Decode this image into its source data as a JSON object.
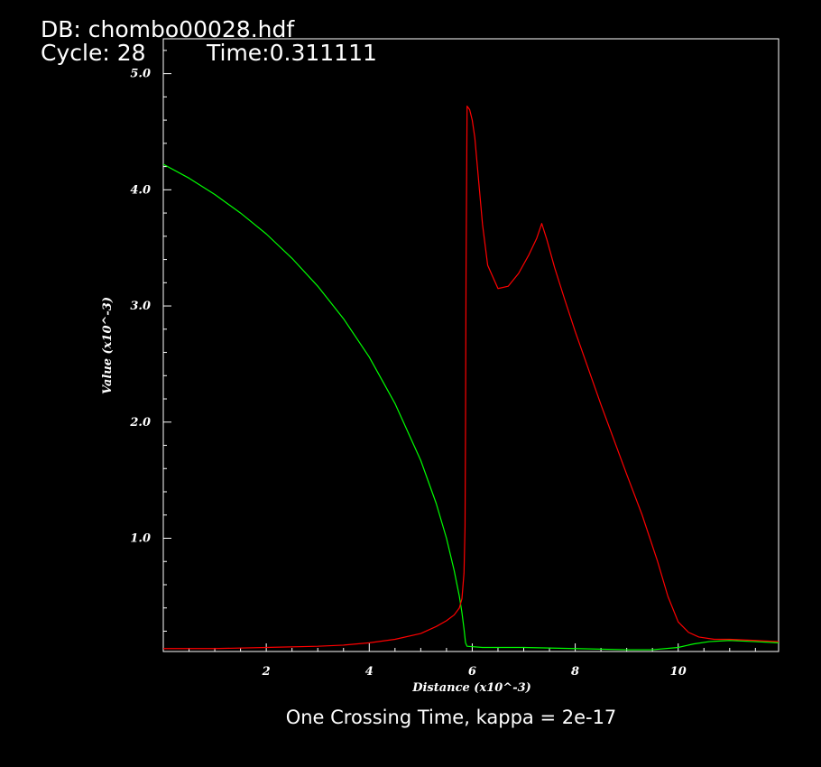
{
  "header": {
    "db_line": "DB: chombo00028.hdf",
    "cycle_line": "Cycle: 28",
    "time_line": "Time:0.311111"
  },
  "colors": {
    "background": "#000000",
    "axes": "#ffffff",
    "series_green": "#00ff00",
    "series_red": "#ff0000"
  },
  "chart_data": {
    "type": "line",
    "title": "One Crossing Time, kappa = 2e-17",
    "xlabel": "Distance (x10^-3)",
    "ylabel": "Value (x10^-3)",
    "xlim": [
      0,
      11.95
    ],
    "ylim": [
      0.025,
      5.3
    ],
    "grid": false,
    "legend": "none",
    "x_ticks": [
      {
        "value": 2,
        "label": "2"
      },
      {
        "value": 4,
        "label": "4"
      },
      {
        "value": 6,
        "label": "6"
      },
      {
        "value": 8,
        "label": "8"
      },
      {
        "value": 10,
        "label": "10"
      }
    ],
    "y_ticks": [
      {
        "value": 1,
        "label": "1.0"
      },
      {
        "value": 2,
        "label": "2.0"
      },
      {
        "value": 3,
        "label": "3.0"
      },
      {
        "value": 4,
        "label": "4.0"
      },
      {
        "value": 5,
        "label": "5.0"
      }
    ],
    "series": [
      {
        "color": "#00ff00",
        "x": [
          0,
          0.5,
          1,
          1.5,
          2,
          2.5,
          3,
          3.5,
          4,
          4.5,
          5,
          5.3,
          5.5,
          5.65,
          5.75,
          5.8,
          5.84,
          5.87,
          5.9,
          6.2,
          7,
          8,
          9,
          9.5,
          10,
          10.3,
          10.6,
          11,
          11.5,
          11.95
        ],
        "y": [
          4.22,
          4.1,
          3.96,
          3.8,
          3.62,
          3.41,
          3.17,
          2.89,
          2.56,
          2.16,
          1.67,
          1.3,
          1.0,
          0.72,
          0.5,
          0.36,
          0.22,
          0.1,
          0.07,
          0.06,
          0.06,
          0.05,
          0.04,
          0.04,
          0.06,
          0.09,
          0.11,
          0.12,
          0.11,
          0.1
        ]
      },
      {
        "color": "#ff0000",
        "x": [
          0,
          1,
          2,
          3,
          3.5,
          4,
          4.5,
          5,
          5.3,
          5.5,
          5.65,
          5.75,
          5.8,
          5.84,
          5.86,
          5.87,
          5.88,
          5.9,
          5.95,
          6.0,
          6.05,
          6.1,
          6.2,
          6.3,
          6.5,
          6.7,
          6.9,
          7.1,
          7.25,
          7.35,
          7.45,
          7.6,
          7.8,
          8.0,
          8.5,
          9.0,
          9.3,
          9.6,
          9.8,
          10.0,
          10.2,
          10.4,
          10.7,
          11.0,
          11.5,
          11.95
        ],
        "y": [
          0.05,
          0.05,
          0.06,
          0.07,
          0.08,
          0.1,
          0.13,
          0.18,
          0.24,
          0.29,
          0.34,
          0.4,
          0.48,
          0.7,
          1.1,
          2.0,
          3.3,
          4.72,
          4.69,
          4.6,
          4.45,
          4.2,
          3.7,
          3.35,
          3.15,
          3.17,
          3.28,
          3.44,
          3.58,
          3.71,
          3.57,
          3.33,
          3.05,
          2.78,
          2.15,
          1.55,
          1.2,
          0.8,
          0.5,
          0.28,
          0.19,
          0.15,
          0.13,
          0.13,
          0.12,
          0.11
        ]
      }
    ]
  }
}
